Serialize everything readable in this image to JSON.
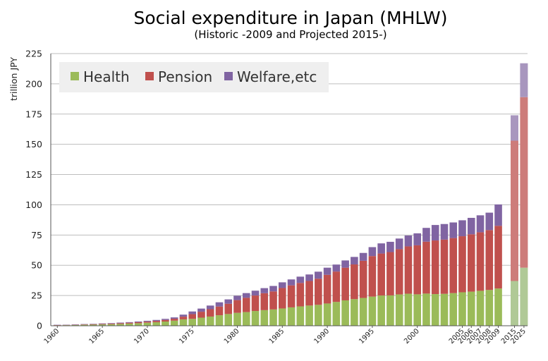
{
  "chart_data": {
    "type": "bar",
    "stacked": true,
    "title": "Social expenditure in Japan (MHLW)",
    "subtitle": "(Historic -2009 and Projected 2015-)",
    "ylabel": "trillion JPY",
    "xlabel": "",
    "ylim": [
      0,
      225
    ],
    "yticks": [
      0,
      25,
      50,
      75,
      100,
      125,
      150,
      175,
      200,
      225
    ],
    "grid": true,
    "legend_position": "top-left",
    "categories": [
      "1960",
      "1961",
      "1962",
      "1963",
      "1964",
      "1965",
      "1966",
      "1967",
      "1968",
      "1969",
      "1970",
      "1971",
      "1972",
      "1973",
      "1974",
      "1975",
      "1976",
      "1977",
      "1978",
      "1979",
      "1980",
      "1981",
      "1982",
      "1983",
      "1984",
      "1985",
      "1986",
      "1987",
      "1988",
      "1989",
      "1990",
      "1991",
      "1992",
      "1993",
      "1994",
      "1995",
      "1996",
      "1997",
      "1998",
      "1999",
      "2000",
      "2001",
      "2002",
      "2003",
      "2004",
      "2005",
      "2006",
      "2007",
      "2008",
      "2009",
      "2015",
      "2025"
    ],
    "xtick_labels": [
      "1960",
      "1965",
      "1970",
      "1975",
      "1980",
      "1985",
      "1990",
      "1995",
      "2000",
      "2005",
      "2006",
      "2007",
      "2008",
      "2009",
      "2015",
      "2025"
    ],
    "projected_categories": [
      "2015",
      "2025"
    ],
    "series": [
      {
        "name": "Health",
        "color": "#9bbb59",
        "projected_color": "#b0c996",
        "values": [
          0.4,
          0.5,
          0.6,
          0.8,
          0.9,
          1.1,
          1.3,
          1.5,
          1.8,
          2.1,
          2.5,
          2.9,
          3.5,
          4.2,
          5.3,
          5.7,
          6.7,
          7.6,
          8.7,
          9.7,
          10.7,
          11.3,
          12.2,
          12.9,
          13.5,
          14.3,
          15.2,
          16.0,
          16.7,
          17.3,
          18.4,
          19.7,
          21.0,
          22.0,
          23.0,
          24.1,
          25.0,
          25.1,
          25.9,
          26.5,
          26.0,
          26.6,
          26.2,
          26.4,
          27.0,
          27.7,
          28.2,
          28.9,
          29.6,
          30.8,
          37.0,
          48.0
        ]
      },
      {
        "name": "Pension",
        "color": "#c0504d",
        "projected_color": "#cd7c7a",
        "values": [
          0.2,
          0.2,
          0.2,
          0.3,
          0.4,
          0.4,
          0.5,
          0.6,
          0.7,
          0.8,
          0.9,
          1.1,
          1.3,
          1.6,
          2.2,
          3.9,
          4.9,
          6.1,
          7.2,
          8.5,
          10.5,
          11.8,
          12.8,
          14.0,
          14.9,
          16.9,
          18.2,
          19.4,
          20.3,
          21.6,
          23.7,
          25.1,
          27.0,
          28.7,
          30.7,
          33.5,
          34.7,
          35.8,
          37.4,
          39.1,
          40.5,
          42.9,
          44.3,
          44.8,
          45.5,
          46.3,
          47.4,
          48.4,
          49.5,
          51.8,
          116.0,
          141.0
        ]
      },
      {
        "name": "Welfare,etc",
        "color": "#8064a2",
        "projected_color": "#a896be",
        "values": [
          0.2,
          0.2,
          0.3,
          0.3,
          0.3,
          0.4,
          0.4,
          0.5,
          0.5,
          0.6,
          0.7,
          0.8,
          0.9,
          1.1,
          1.7,
          2.2,
          2.6,
          3.0,
          3.5,
          3.6,
          3.6,
          3.9,
          4.0,
          4.2,
          4.5,
          4.7,
          4.9,
          5.2,
          5.4,
          5.8,
          5.9,
          5.8,
          6.0,
          6.2,
          6.5,
          7.4,
          8.4,
          8.5,
          8.8,
          9.0,
          9.9,
          11.4,
          12.8,
          12.9,
          12.9,
          13.2,
          13.6,
          14.0,
          14.4,
          17.7,
          21.0,
          28.0
        ]
      }
    ]
  }
}
